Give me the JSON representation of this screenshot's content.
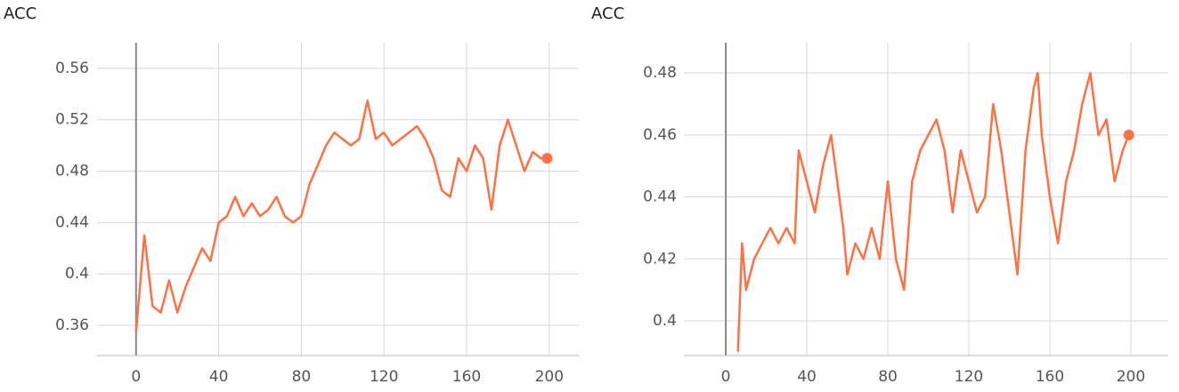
{
  "chart_data": [
    {
      "type": "line",
      "title": "ACC",
      "color": "#ff7043",
      "grid": true,
      "x": [
        0,
        4,
        8,
        12,
        16,
        20,
        24,
        28,
        32,
        36,
        40,
        44,
        48,
        52,
        56,
        60,
        64,
        68,
        72,
        76,
        80,
        84,
        88,
        92,
        96,
        100,
        104,
        108,
        112,
        116,
        120,
        124,
        128,
        132,
        136,
        140,
        144,
        148,
        152,
        156,
        160,
        164,
        168,
        172,
        176,
        180,
        184,
        188,
        192,
        196,
        199
      ],
      "values": [
        0.355,
        0.43,
        0.375,
        0.37,
        0.395,
        0.37,
        0.39,
        0.405,
        0.42,
        0.41,
        0.44,
        0.445,
        0.46,
        0.445,
        0.455,
        0.445,
        0.45,
        0.46,
        0.445,
        0.44,
        0.445,
        0.47,
        0.485,
        0.5,
        0.51,
        0.505,
        0.5,
        0.505,
        0.535,
        0.505,
        0.51,
        0.5,
        0.505,
        0.51,
        0.515,
        0.505,
        0.49,
        0.465,
        0.46,
        0.49,
        0.48,
        0.5,
        0.49,
        0.45,
        0.5,
        0.52,
        0.5,
        0.48,
        0.495,
        0.49,
        0.49
      ],
      "xlim": [
        -19.3,
        214.3
      ],
      "xticks": [
        0,
        40,
        80,
        120,
        160,
        200
      ],
      "ylim": [
        0.3365,
        0.58
      ],
      "yticks": [
        0.36,
        0.4,
        0.44,
        0.48,
        0.52,
        0.56
      ]
    },
    {
      "type": "line",
      "title": "ACC",
      "color": "#ff7043",
      "grid": true,
      "x": [
        6,
        8,
        10,
        14,
        18,
        22,
        26,
        30,
        34,
        36,
        40,
        44,
        48,
        52,
        54,
        58,
        60,
        64,
        68,
        72,
        76,
        80,
        84,
        88,
        92,
        96,
        100,
        104,
        108,
        112,
        116,
        120,
        124,
        128,
        132,
        136,
        140,
        144,
        148,
        152,
        154,
        156,
        160,
        164,
        168,
        172,
        176,
        180,
        184,
        188,
        192,
        196,
        199
      ],
      "values": [
        0.39,
        0.425,
        0.41,
        0.42,
        0.425,
        0.43,
        0.425,
        0.43,
        0.425,
        0.455,
        0.445,
        0.435,
        0.45,
        0.46,
        0.45,
        0.43,
        0.415,
        0.425,
        0.42,
        0.43,
        0.42,
        0.445,
        0.42,
        0.41,
        0.445,
        0.455,
        0.46,
        0.465,
        0.455,
        0.435,
        0.455,
        0.445,
        0.435,
        0.44,
        0.47,
        0.455,
        0.435,
        0.415,
        0.455,
        0.475,
        0.48,
        0.46,
        0.44,
        0.425,
        0.445,
        0.455,
        0.47,
        0.48,
        0.46,
        0.465,
        0.445,
        0.455,
        0.46
      ],
      "xlim": [
        -20.7,
        218.5
      ],
      "xticks": [
        0,
        40,
        80,
        120,
        160,
        200
      ],
      "ylim": [
        0.3888,
        0.4898
      ],
      "yticks": [
        0.4,
        0.42,
        0.44,
        0.46,
        0.48
      ]
    }
  ]
}
